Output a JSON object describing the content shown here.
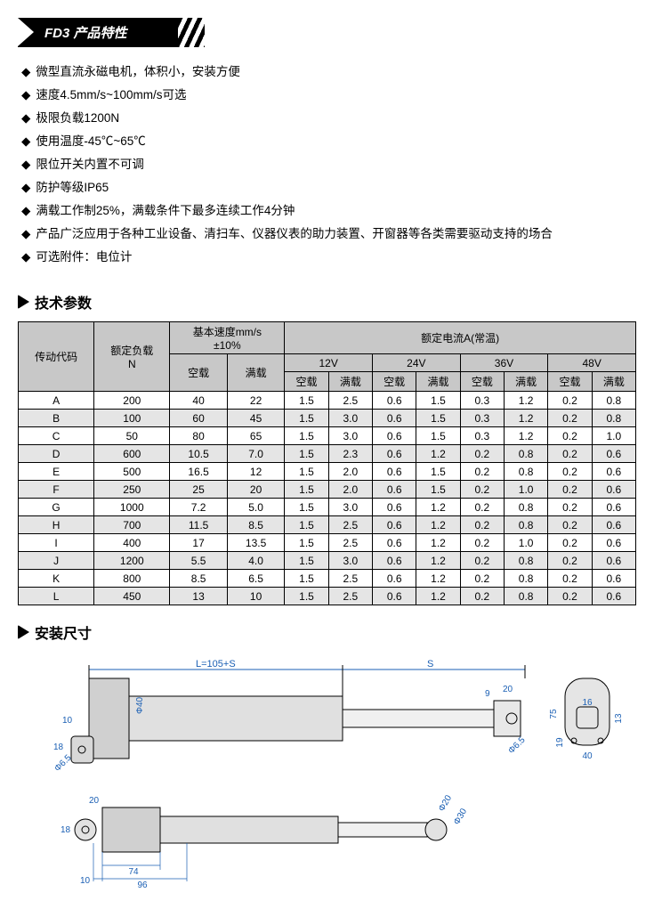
{
  "header_title": "FD3 产品特性",
  "features": [
    "微型直流永磁电机，体积小，安装方便",
    "速度4.5mm/s~100mm/s可选",
    "极限负载1200N",
    "使用温度-45℃~65℃",
    "限位开关内置不可调",
    "防护等级IP65",
    "满载工作制25%，满载条件下最多连续工作4分钟",
    "产品广泛应用于各种工业设备、清扫车、仪器仪表的助力装置、开窗器等各类需要驱动支持的场合",
    "可选附件：电位计"
  ],
  "section_params_title": "技术参数",
  "section_dims_title": "安装尺寸",
  "table": {
    "col_drive_code": "传动代码",
    "col_rated_load": "额定负载\nN",
    "col_basic_speed": "基本速度mm/s\n±10%",
    "col_rated_current": "额定电流A(常温)",
    "sub_noload": "空载",
    "sub_full": "满载",
    "volt_12": "12V",
    "volt_24": "24V",
    "volt_36": "36V",
    "volt_48": "48V",
    "rows": [
      {
        "code": "A",
        "load": "200",
        "sn": "40",
        "sf": "22",
        "v12n": "1.5",
        "v12f": "2.5",
        "v24n": "0.6",
        "v24f": "1.5",
        "v36n": "0.3",
        "v36f": "1.2",
        "v48n": "0.2",
        "v48f": "0.8"
      },
      {
        "code": "B",
        "load": "100",
        "sn": "60",
        "sf": "45",
        "v12n": "1.5",
        "v12f": "3.0",
        "v24n": "0.6",
        "v24f": "1.5",
        "v36n": "0.3",
        "v36f": "1.2",
        "v48n": "0.2",
        "v48f": "0.8"
      },
      {
        "code": "C",
        "load": "50",
        "sn": "80",
        "sf": "65",
        "v12n": "1.5",
        "v12f": "3.0",
        "v24n": "0.6",
        "v24f": "1.5",
        "v36n": "0.3",
        "v36f": "1.2",
        "v48n": "0.2",
        "v48f": "1.0"
      },
      {
        "code": "D",
        "load": "600",
        "sn": "10.5",
        "sf": "7.0",
        "v12n": "1.5",
        "v12f": "2.3",
        "v24n": "0.6",
        "v24f": "1.2",
        "v36n": "0.2",
        "v36f": "0.8",
        "v48n": "0.2",
        "v48f": "0.6"
      },
      {
        "code": "E",
        "load": "500",
        "sn": "16.5",
        "sf": "12",
        "v12n": "1.5",
        "v12f": "2.0",
        "v24n": "0.6",
        "v24f": "1.5",
        "v36n": "0.2",
        "v36f": "0.8",
        "v48n": "0.2",
        "v48f": "0.6"
      },
      {
        "code": "F",
        "load": "250",
        "sn": "25",
        "sf": "20",
        "v12n": "1.5",
        "v12f": "2.0",
        "v24n": "0.6",
        "v24f": "1.5",
        "v36n": "0.2",
        "v36f": "1.0",
        "v48n": "0.2",
        "v48f": "0.6"
      },
      {
        "code": "G",
        "load": "1000",
        "sn": "7.2",
        "sf": "5.0",
        "v12n": "1.5",
        "v12f": "3.0",
        "v24n": "0.6",
        "v24f": "1.2",
        "v36n": "0.2",
        "v36f": "0.8",
        "v48n": "0.2",
        "v48f": "0.6"
      },
      {
        "code": "H",
        "load": "700",
        "sn": "11.5",
        "sf": "8.5",
        "v12n": "1.5",
        "v12f": "2.5",
        "v24n": "0.6",
        "v24f": "1.2",
        "v36n": "0.2",
        "v36f": "0.8",
        "v48n": "0.2",
        "v48f": "0.6"
      },
      {
        "code": "I",
        "load": "400",
        "sn": "17",
        "sf": "13.5",
        "v12n": "1.5",
        "v12f": "2.5",
        "v24n": "0.6",
        "v24f": "1.2",
        "v36n": "0.2",
        "v36f": "1.0",
        "v48n": "0.2",
        "v48f": "0.6"
      },
      {
        "code": "J",
        "load": "1200",
        "sn": "5.5",
        "sf": "4.0",
        "v12n": "1.5",
        "v12f": "3.0",
        "v24n": "0.6",
        "v24f": "1.2",
        "v36n": "0.2",
        "v36f": "0.8",
        "v48n": "0.2",
        "v48f": "0.6"
      },
      {
        "code": "K",
        "load": "800",
        "sn": "8.5",
        "sf": "6.5",
        "v12n": "1.5",
        "v12f": "2.5",
        "v24n": "0.6",
        "v24f": "1.2",
        "v36n": "0.2",
        "v36f": "0.8",
        "v48n": "0.2",
        "v48f": "0.6"
      },
      {
        "code": "L",
        "load": "450",
        "sn": "13",
        "sf": "10",
        "v12n": "1.5",
        "v12f": "2.5",
        "v24n": "0.6",
        "v24f": "1.2",
        "v36n": "0.2",
        "v36f": "0.8",
        "v48n": "0.2",
        "v48f": "0.6"
      }
    ]
  },
  "dimensions": {
    "L_formula": "L=105+S",
    "S_label": "S",
    "phi40": "Φ40",
    "phi20": "Φ20",
    "phi30": "Φ30",
    "phi65": "Φ6.5",
    "d10": "10",
    "d18": "18",
    "d20": "20",
    "d74": "74",
    "d96": "96",
    "d9": "9",
    "d_t20": "20",
    "d75": "75",
    "d19": "19",
    "d40": "40",
    "d13": "13",
    "d16": "16"
  }
}
